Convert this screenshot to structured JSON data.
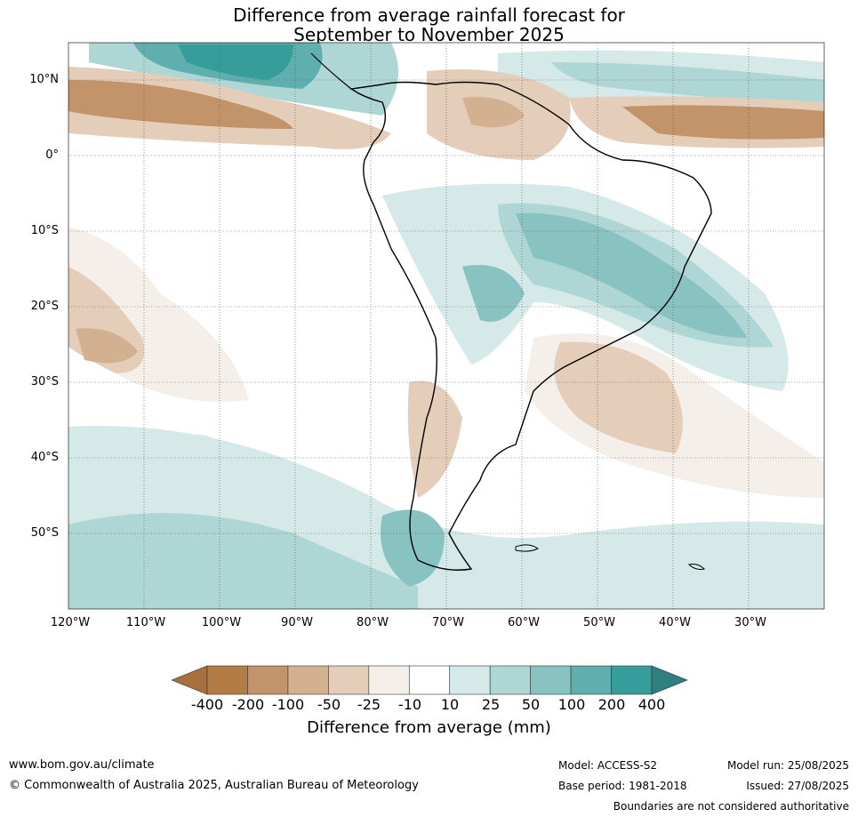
{
  "title_line1": "Difference from average rainfall forecast for",
  "title_line2": "September to November 2025",
  "map": {
    "region": "South America",
    "lat_labels": [
      "10°N",
      "0°",
      "10°S",
      "20°S",
      "30°S",
      "40°S",
      "50°S"
    ],
    "lon_labels": [
      "120°W",
      "110°W",
      "100°W",
      "90°W",
      "80°W",
      "70°W",
      "60°W",
      "50°W",
      "40°W",
      "30°W"
    ]
  },
  "colorbar": {
    "title": "Difference from average (mm)",
    "labels": [
      "-400",
      "-200",
      "-100",
      "-50",
      "-25",
      "-10",
      "10",
      "25",
      "50",
      "100",
      "200",
      "400"
    ],
    "colors": [
      "#a8703c",
      "#b37c45",
      "#c39369",
      "#d3b190",
      "#e4cdb9",
      "#f4efe9",
      "#ffffff",
      "#d4e9e8",
      "#aed6d5",
      "#88c3c2",
      "#5fafae",
      "#379d9b",
      "#2e7f7e"
    ]
  },
  "footer": {
    "url": "www.bom.gov.au/climate",
    "copyright": "© Commonwealth of Australia 2025, Australian Bureau of Meteorology",
    "model": "Model: ACCESS-S2",
    "base_period": "Base period: 1981-2018",
    "model_run": "Model run: 25/08/2025",
    "issued": "Issued: 27/08/2025",
    "disclaimer": "Boundaries are not considered authoritative"
  }
}
